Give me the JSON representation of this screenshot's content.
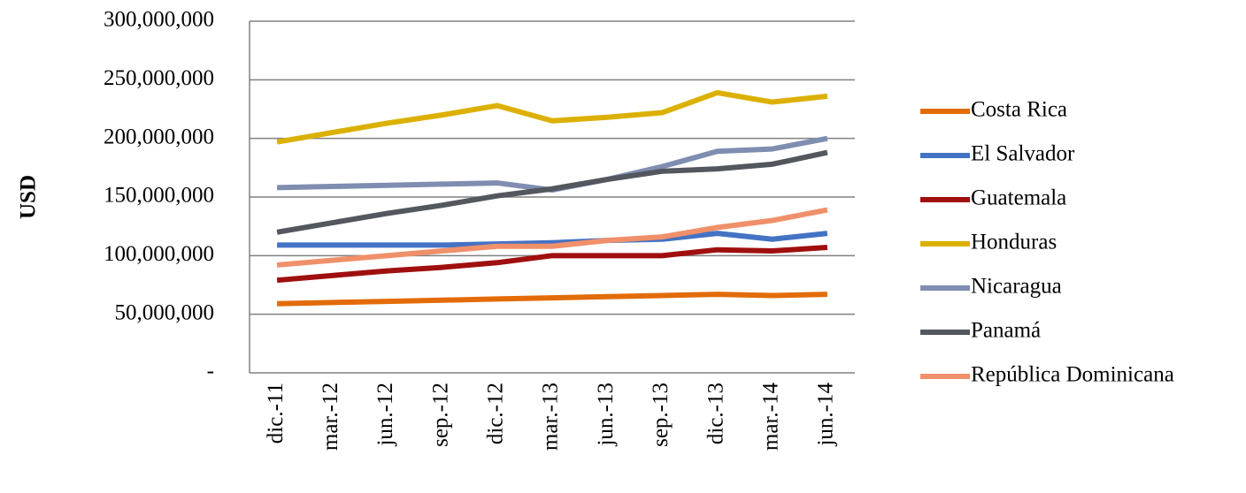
{
  "chart_data": {
    "type": "line",
    "y_label": "USD",
    "categories": [
      "dic.-11",
      "mar.-12",
      "jun.-12",
      "sep.-12",
      "dic.-12",
      "mar.-13",
      "jun.-13",
      "sep.-13",
      "dic.-13",
      "mar.-14",
      "jun.-14"
    ],
    "ylim": [
      0,
      300000000
    ],
    "yticks": [
      {
        "value": 0,
        "label": "-"
      },
      {
        "value": 50000000,
        "label": "50,000,000"
      },
      {
        "value": 100000000,
        "label": "100,000,000"
      },
      {
        "value": 150000000,
        "label": "150,000,000"
      },
      {
        "value": 200000000,
        "label": "200,000,000"
      },
      {
        "value": 250000000,
        "label": "250,000,000"
      },
      {
        "value": 300000000,
        "label": "300,000,000"
      }
    ],
    "grid": true,
    "series": [
      {
        "name": "Costa Rica",
        "color": "#e36c09",
        "values": [
          59000000,
          60000000,
          61000000,
          62000000,
          63000000,
          64000000,
          65000000,
          66000000,
          67000000,
          66000000,
          67000000
        ]
      },
      {
        "name": "El Salvador",
        "color": "#4472c4",
        "values": [
          109000000,
          109000000,
          109000000,
          109000000,
          110000000,
          111000000,
          113000000,
          114000000,
          119000000,
          114000000,
          119000000
        ]
      },
      {
        "name": "Guatemala",
        "color": "#a00f0f",
        "values": [
          79000000,
          83000000,
          87000000,
          90000000,
          94000000,
          100000000,
          100000000,
          100000000,
          105000000,
          104000000,
          107000000
        ]
      },
      {
        "name": "Honduras",
        "color": "#dcb000",
        "values": [
          197000000,
          205000000,
          213000000,
          220000000,
          228000000,
          215000000,
          218000000,
          222000000,
          239000000,
          231000000,
          236000000
        ]
      },
      {
        "name": "Nicaragua",
        "color": "#7f8db0",
        "values": [
          158000000,
          159000000,
          160000000,
          161000000,
          162000000,
          156000000,
          165000000,
          176000000,
          189000000,
          191000000,
          200000000
        ]
      },
      {
        "name": "Panamá",
        "color": "#53575e",
        "values": [
          120000000,
          128000000,
          136000000,
          143000000,
          151000000,
          157000000,
          165000000,
          172000000,
          174000000,
          178000000,
          188000000
        ]
      },
      {
        "name": "República Dominicana",
        "color": "#f0906a",
        "values": [
          92000000,
          96000000,
          100000000,
          104000000,
          108000000,
          108000000,
          113000000,
          116000000,
          124000000,
          130000000,
          139000000
        ]
      }
    ]
  }
}
